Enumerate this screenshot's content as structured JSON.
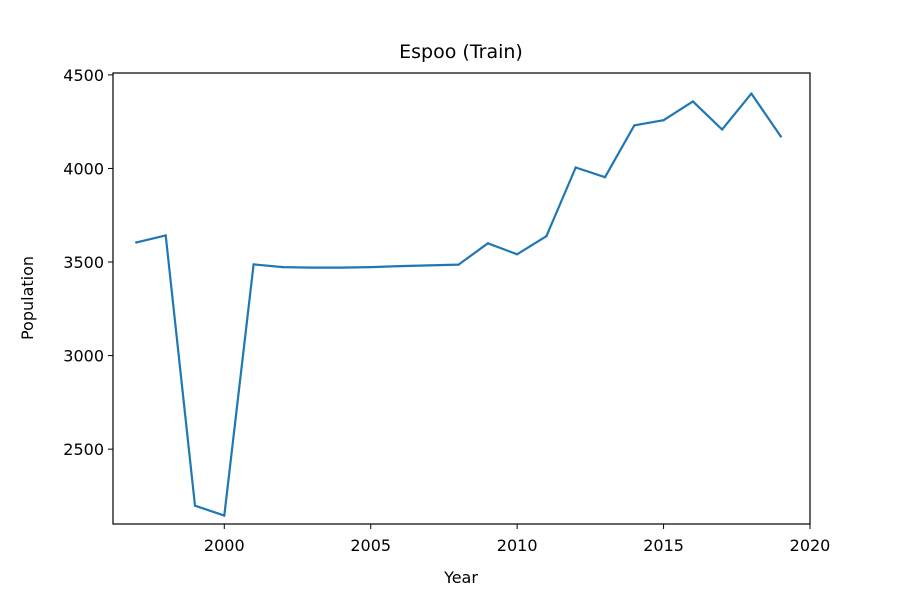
{
  "chart_data": {
    "type": "line",
    "title": "Espoo (Train)",
    "xlabel": "Year",
    "ylabel": "Population",
    "xlim": [
      1996.2,
      2020.0
    ],
    "ylim": [
      2100,
      4510
    ],
    "xticks": [
      2000,
      2005,
      2010,
      2015,
      2020
    ],
    "yticks": [
      2500,
      3000,
      3500,
      4000,
      4500
    ],
    "grid": false,
    "series": [
      {
        "color": "#1f77b4",
        "x": [
          1997,
          1998,
          1999,
          2000,
          2001,
          2002,
          2003,
          2004,
          2005,
          2006,
          2007,
          2008,
          2009,
          2010,
          2011,
          2012,
          2013,
          2014,
          2015,
          2016,
          2017,
          2018,
          2019
        ],
        "y": [
          3605,
          3642,
          2198,
          2145,
          3487,
          3473,
          3470,
          3470,
          3473,
          3478,
          3482,
          3486,
          3600,
          3541,
          3638,
          4005,
          3953,
          4230,
          4258,
          4358,
          4208,
          4400,
          4172
        ]
      }
    ]
  }
}
